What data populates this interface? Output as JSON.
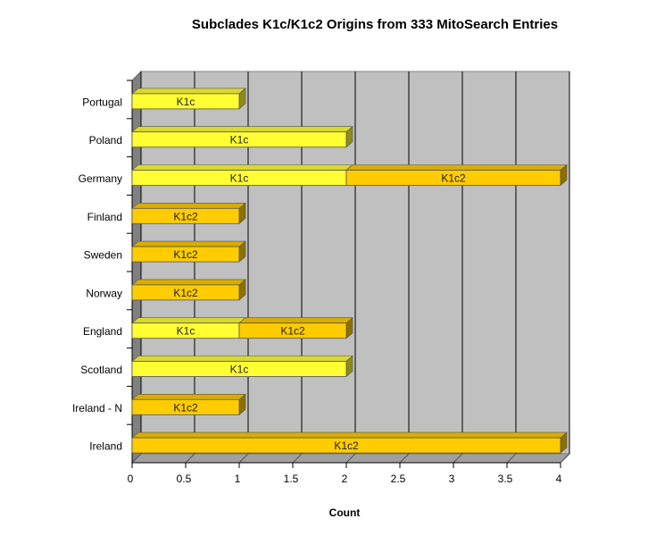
{
  "chart_data": {
    "type": "bar",
    "orientation": "horizontal",
    "stacked": true,
    "title": "Subclades K1c/K1c2 Origins from 333 MitoSearch Entries",
    "xlabel": "Count",
    "ylabel": "",
    "xlim": [
      0,
      4
    ],
    "x_ticks": [
      "0",
      "0.5",
      "1",
      "1.5",
      "2",
      "2.5",
      "3",
      "3.5",
      "4"
    ],
    "categories": [
      "Portugal",
      "Poland",
      "Germany",
      "Finland",
      "Sweden",
      "Norway",
      "England",
      "Scotland",
      "Ireland - N",
      "Ireland"
    ],
    "series": [
      {
        "name": "K1c",
        "color": "#ffff33",
        "values": [
          1,
          2,
          2,
          0,
          0,
          0,
          1,
          2,
          0,
          0
        ]
      },
      {
        "name": "K1c2",
        "color": "#ffcc00",
        "values": [
          0,
          0,
          2,
          1,
          1,
          1,
          1,
          0,
          1,
          4
        ]
      }
    ],
    "grid": true,
    "style": "3d",
    "plot_background": "#c0c0c0"
  }
}
